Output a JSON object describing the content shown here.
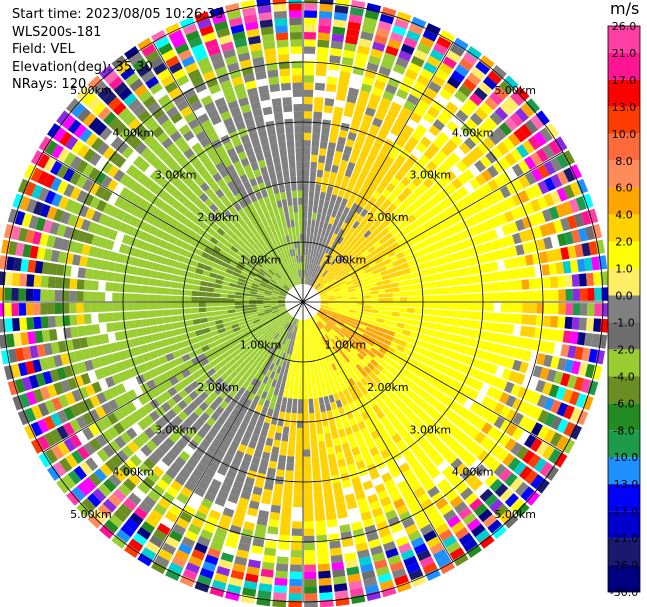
{
  "header": {
    "start_time": "Start time: 2023/08/05 10:26:33",
    "instrument": "WLS200s-181",
    "field": "Field: VEL",
    "elevation": "Elevation(deg): 35.30",
    "nrays": "NRays: 120"
  },
  "colorbar": {
    "title": "m/s",
    "ticks": [
      "26.0",
      "21.0",
      "17.0",
      "13.0",
      "10.0",
      "8.0",
      "6.0",
      "4.0",
      "2.0",
      "1.0",
      "0.0",
      "-1.0",
      "-2.0",
      "-4.0",
      "-6.0",
      "-8.0",
      "-10.0",
      "-13.0",
      "-17.0",
      "-21.0",
      "-26.0",
      "-30.0"
    ],
    "colors": [
      "#ff3fa6",
      "#ff1493",
      "#ff0000",
      "#ff3c00",
      "#ff6a3c",
      "#ff8c5a",
      "#ffa500",
      "#ffd200",
      "#ffff00",
      "#ffee66",
      "#808080",
      "#6e6e6e",
      "#9acd32",
      "#6b8e23",
      "#228b22",
      "#1e9b4a",
      "#1e90ff",
      "#0000ff",
      "#0000cd",
      "#191970",
      "#000080"
    ]
  },
  "chart_data": {
    "type": "ppi",
    "field": "VEL",
    "units": "m/s",
    "range_rings_km": [
      1.0,
      2.0,
      3.0,
      4.0,
      5.0
    ],
    "ring_labels": [
      "1.00km",
      "2.00km",
      "3.00km",
      "4.00km",
      "5.00km"
    ],
    "nrays": 120,
    "color_scale": [
      -30,
      26
    ],
    "spokes_deg": [
      0,
      30,
      60,
      90,
      120,
      150,
      180,
      210,
      240,
      270,
      300,
      330
    ]
  }
}
